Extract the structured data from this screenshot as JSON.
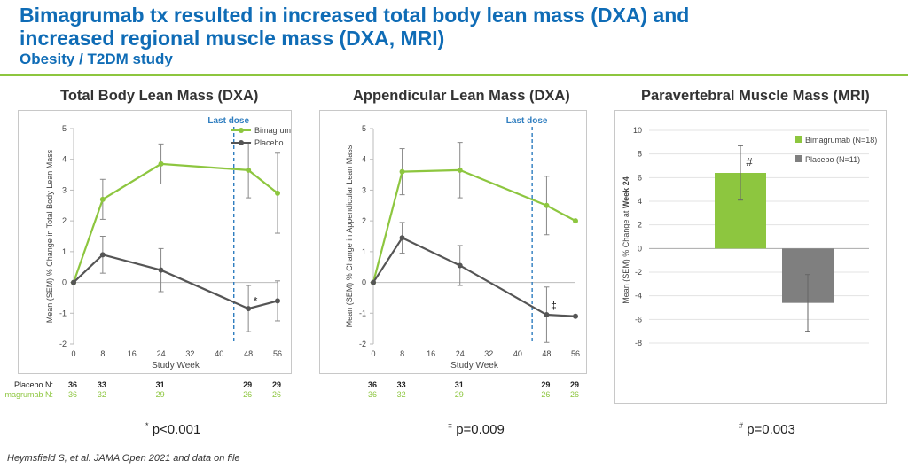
{
  "header": {
    "title_line1": "Bimagrumab tx resulted in increased total body lean mass (DXA) and",
    "title_line2": "increased regional muscle mass (DXA, MRI)",
    "subtitle": "Obesity / T2DM study"
  },
  "colors": {
    "title": "#0f6cb6",
    "bimagrumab": "#8dc63f",
    "placebo": "#555555",
    "dose_line": "#2e7dbf",
    "rule": "#8dc63f"
  },
  "chart_data": [
    {
      "type": "line",
      "title": "Total Body Lean Mass (DXA)",
      "xlabel": "Study Week",
      "ylabel": "Mean (SEM) % Change in Total Body Lean Mass",
      "ylim": [
        -2,
        5
      ],
      "xticks": [
        0,
        8,
        16,
        24,
        32,
        40,
        48,
        56
      ],
      "yticks": [
        -2,
        -1,
        0,
        1,
        2,
        3,
        4,
        5
      ],
      "dose_label": "Last dose",
      "dose_week": 44,
      "series": [
        {
          "name": "Bimagrumab",
          "x": [
            0,
            8,
            24,
            48,
            56
          ],
          "y": [
            0,
            2.7,
            3.85,
            3.65,
            2.9
          ],
          "err": [
            0,
            0.65,
            0.65,
            0.9,
            1.3
          ]
        },
        {
          "name": "Placebo",
          "x": [
            0,
            8,
            24,
            48,
            56
          ],
          "y": [
            0,
            0.9,
            0.4,
            -0.85,
            -0.6
          ],
          "err": [
            0,
            0.6,
            0.7,
            0.75,
            0.65
          ]
        }
      ],
      "annotation": {
        "symbol": "*",
        "week": 48,
        "value": -0.6
      },
      "counts": {
        "placebo_label": "Placebo N:",
        "bimagrumab_label": "imagrumab N:",
        "weeks": [
          0,
          8,
          24,
          48,
          56
        ],
        "placebo": [
          "36",
          "33",
          "31",
          "29",
          "29"
        ],
        "bimagrumab": [
          "36",
          "32",
          "29",
          "26",
          "26"
        ]
      },
      "footnote_symbol": "*",
      "footnote_text": "p<0.001"
    },
    {
      "type": "line",
      "title": "Appendicular Lean Mass (DXA)",
      "xlabel": "Study Week",
      "ylabel": "Mean (SEM) % Change in Appendicular Lean Mass",
      "ylim": [
        -2,
        5
      ],
      "xticks": [
        0,
        8,
        16,
        24,
        32,
        40,
        48,
        56
      ],
      "yticks": [
        -2,
        -1,
        0,
        1,
        2,
        3,
        4,
        5
      ],
      "dose_label": "Last dose",
      "dose_week": 44,
      "series": [
        {
          "name": "Bimagrumab",
          "x": [
            0,
            8,
            24,
            48,
            56
          ],
          "y": [
            0,
            3.6,
            3.65,
            2.5,
            2.0
          ],
          "err": [
            0,
            0.75,
            0.9,
            0.95,
            0
          ]
        },
        {
          "name": "Placebo",
          "x": [
            0,
            8,
            24,
            48,
            56
          ],
          "y": [
            0,
            1.45,
            0.55,
            -1.05,
            -1.1
          ],
          "err": [
            0,
            0.5,
            0.65,
            0.9,
            0
          ]
        }
      ],
      "annotation": {
        "symbol": "‡",
        "week": 48,
        "value": -0.75
      },
      "counts": {
        "weeks": [
          0,
          8,
          24,
          48,
          56
        ],
        "placebo": [
          "36",
          "33",
          "31",
          "29",
          "29"
        ],
        "bimagrumab": [
          "36",
          "32",
          "29",
          "26",
          "26"
        ]
      },
      "footnote_symbol": "‡",
      "footnote_text": "p=0.009"
    },
    {
      "type": "bar",
      "title": "Paravertebral Muscle Mass (MRI)",
      "ylabel": "Mean (SEM) % Change at Week 24",
      "ylabel_plain": "Mean (SEM) % Change at ",
      "ylabel_bold": "Week 24",
      "ylim": [
        -8,
        10
      ],
      "yticks": [
        -8,
        -6,
        -4,
        -2,
        0,
        2,
        4,
        6,
        8,
        10
      ],
      "series": [
        {
          "name": "Bimagrumab (N=18)",
          "value": 6.4,
          "err": 2.3
        },
        {
          "name": "Placebo (N=11)",
          "value": -4.6,
          "err": 2.4
        }
      ],
      "annotation": {
        "symbol": "#"
      },
      "footnote_symbol": "#",
      "footnote_text": "p=0.003"
    }
  ],
  "citation": "Heymsfield S, et al. JAMA Open 2021 and data on file"
}
